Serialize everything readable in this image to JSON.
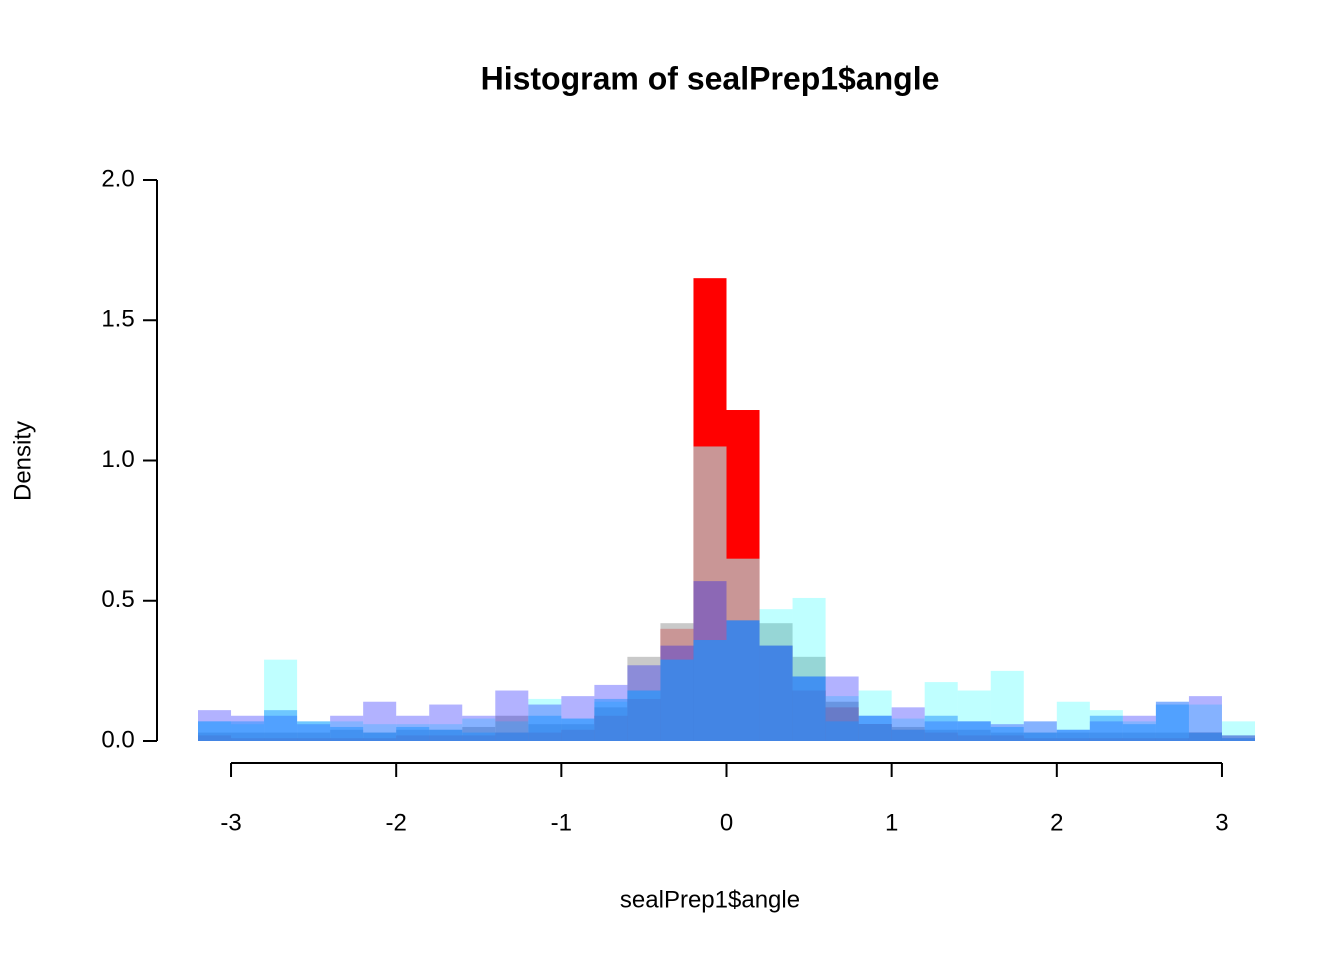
{
  "chart_data": {
    "type": "histogram",
    "title": "Histogram of sealPrep1$angle",
    "xlabel": "sealPrep1$angle",
    "ylabel": "Density",
    "bins": [
      -3.2,
      -3.0,
      -2.8,
      -2.6,
      -2.4,
      -2.2,
      -2.0,
      -1.8,
      -1.6,
      -1.4,
      -1.2,
      -1.0,
      -0.8,
      -0.6,
      -0.4,
      -0.2,
      0.0,
      0.2,
      0.4,
      0.6,
      0.8,
      1.0,
      1.2,
      1.4,
      1.6,
      1.8,
      2.0,
      2.2,
      2.4,
      2.6,
      2.8,
      3.0,
      3.2
    ],
    "series": [
      {
        "color": "#ff0000",
        "values": [
          0.02,
          0.01,
          0.01,
          0.01,
          0.01,
          0.01,
          0.02,
          0.02,
          0.02,
          0.03,
          0.03,
          0.04,
          0.09,
          0.15,
          0.4,
          1.65,
          1.18,
          0.34,
          0.18,
          0.12,
          0.06,
          0.04,
          0.03,
          0.02,
          0.02,
          0.01,
          0.01,
          0.01,
          0.01,
          0.01,
          0.03,
          0.01
        ]
      },
      {
        "color": "rgba(187,187,187,0.8)",
        "values": [
          0.03,
          0.03,
          0.03,
          0.03,
          0.04,
          0.03,
          0.04,
          0.04,
          0.05,
          0.09,
          0.06,
          0.06,
          0.12,
          0.3,
          0.42,
          1.05,
          0.65,
          0.42,
          0.3,
          0.14,
          0.06,
          0.05,
          0.04,
          0.04,
          0.03,
          0.03,
          0.03,
          0.03,
          0.03,
          0.03,
          0.03,
          0.02
        ]
      },
      {
        "color": "rgba(0,255,255,0.25)",
        "values": [
          0.07,
          0.06,
          0.29,
          0.07,
          0.07,
          0.06,
          0.06,
          0.06,
          0.08,
          0.07,
          0.15,
          0.08,
          0.14,
          0.18,
          0.29,
          0.36,
          0.43,
          0.47,
          0.51,
          0.16,
          0.18,
          0.08,
          0.21,
          0.18,
          0.25,
          0.07,
          0.14,
          0.11,
          0.07,
          0.14,
          0.13,
          0.07
        ]
      },
      {
        "color": "rgba(0,0,255,0.3)",
        "values": [
          0.11,
          0.09,
          0.09,
          0.06,
          0.09,
          0.14,
          0.09,
          0.13,
          0.09,
          0.18,
          0.13,
          0.16,
          0.2,
          0.27,
          0.34,
          0.57,
          0.43,
          0.34,
          0.23,
          0.23,
          0.09,
          0.12,
          0.07,
          0.07,
          0.06,
          0.07,
          0.04,
          0.07,
          0.09,
          0.14,
          0.16,
          0.02
        ]
      },
      {
        "color": "rgba(30,144,255,0.5)",
        "values": [
          0.07,
          0.07,
          0.11,
          0.07,
          0.05,
          0.03,
          0.05,
          0.04,
          0.03,
          0.03,
          0.09,
          0.08,
          0.15,
          0.18,
          0.29,
          0.36,
          0.43,
          0.34,
          0.23,
          0.07,
          0.09,
          0.04,
          0.09,
          0.07,
          0.05,
          0.03,
          0.04,
          0.09,
          0.06,
          0.13,
          0.03,
          0.01
        ]
      }
    ],
    "xlim": [
      -3.2,
      3.2
    ],
    "xticks": [
      -3,
      -2,
      -1,
      0,
      1,
      2,
      3
    ],
    "ylim": [
      0,
      2
    ],
    "yticks": [
      {
        "value": 0,
        "label": "0.0"
      },
      {
        "value": 0.5,
        "label": "0.5"
      },
      {
        "value": 1,
        "label": "1.0"
      },
      {
        "value": 1.5,
        "label": "1.5"
      },
      {
        "value": 2,
        "label": "2.0"
      }
    ]
  }
}
